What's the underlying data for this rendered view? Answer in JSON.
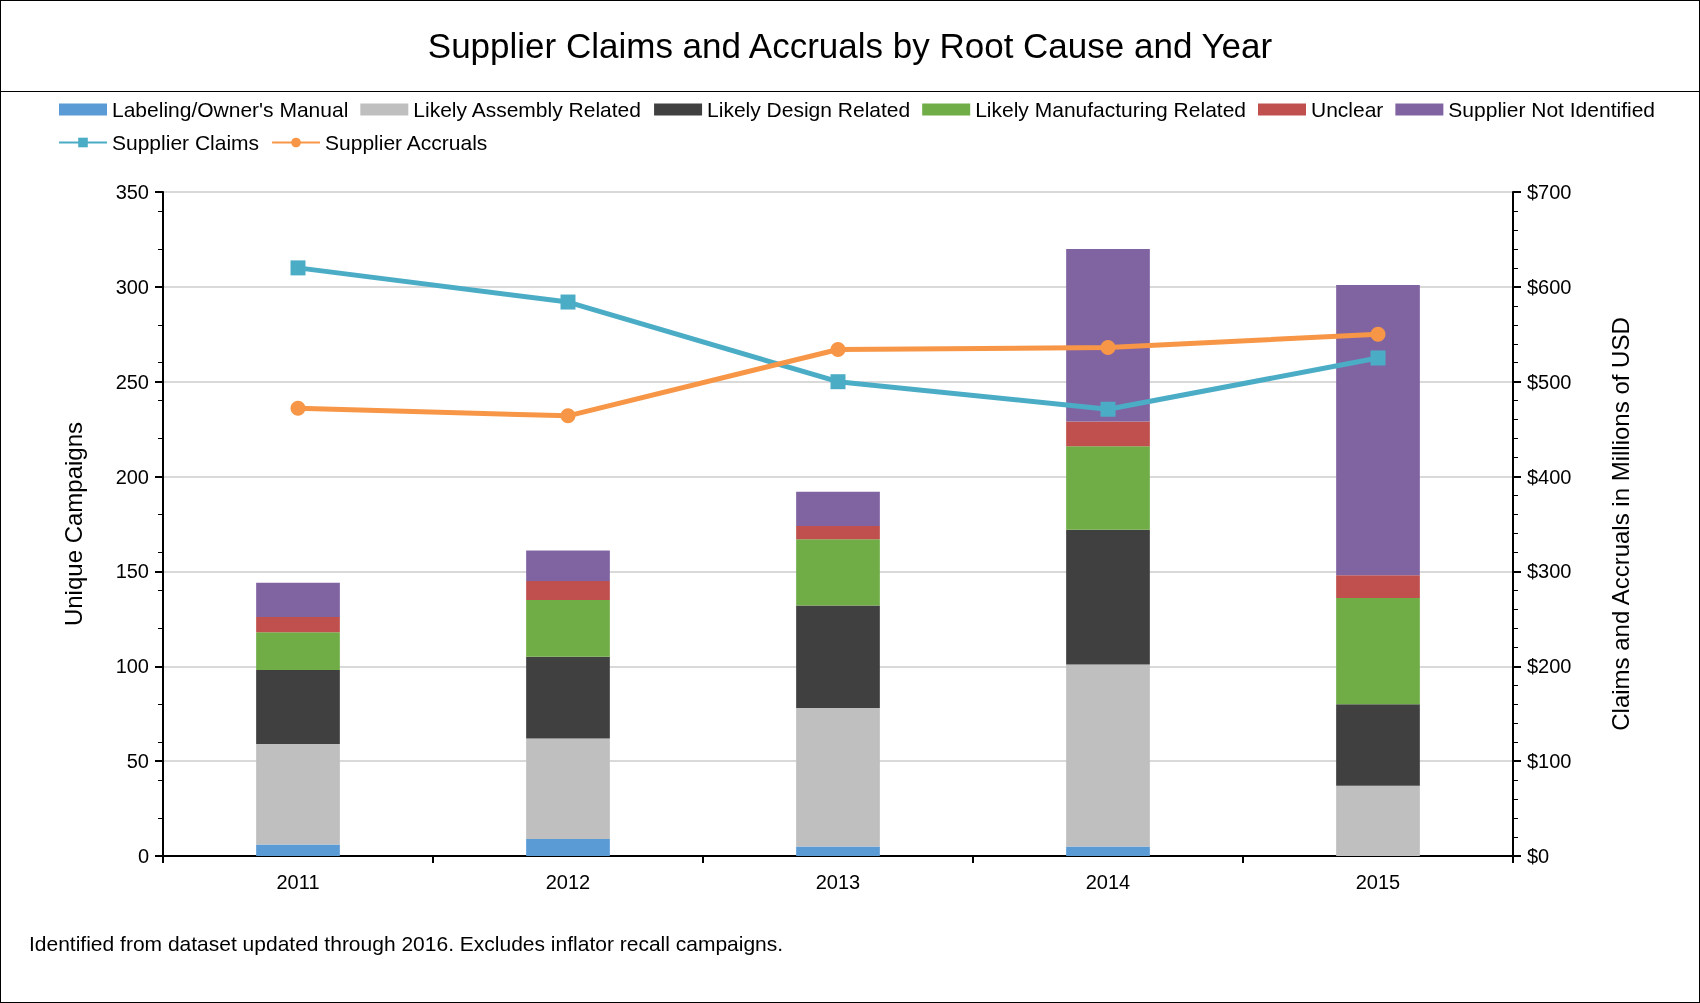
{
  "chart_data": {
    "type": "bar",
    "title": "Supplier Claims and Accruals by Root Cause and Year",
    "categories": [
      "2011",
      "2012",
      "2013",
      "2014",
      "2015"
    ],
    "stacked": true,
    "series": [
      {
        "name": "Labeling/Owner's Manual",
        "color": "#5b9bd5",
        "values": [
          6,
          9,
          5,
          5,
          0
        ]
      },
      {
        "name": "Likely Assembly Related",
        "color": "#bfbfbf",
        "values": [
          53,
          53,
          73,
          96,
          37
        ]
      },
      {
        "name": "Likely Design Related",
        "color": "#404040",
        "values": [
          39,
          43,
          54,
          71,
          43
        ]
      },
      {
        "name": "Likely Manufacturing Related",
        "color": "#70ad47",
        "values": [
          20,
          30,
          35,
          44,
          56
        ]
      },
      {
        "name": "Unclear",
        "color": "#c0504d",
        "values": [
          8,
          10,
          7,
          13,
          12
        ]
      },
      {
        "name": "Supplier Not Identified",
        "color": "#8064a2",
        "values": [
          18,
          16,
          18,
          91,
          153
        ]
      },
      {
        "name": "Supplier Claims",
        "type": "line",
        "axis": "y2",
        "marker": "square",
        "color": "#4bacc6",
        "values": [
          620,
          584,
          500,
          471,
          525
        ]
      },
      {
        "name": "Supplier Accruals",
        "type": "line",
        "axis": "y2",
        "marker": "circle",
        "color": "#f79646",
        "values": [
          472,
          464,
          534,
          536,
          550
        ]
      }
    ],
    "ylabel": "Unique Campaigns",
    "y2label": "Claims and Accruals in Millions of USD",
    "ylim": [
      0,
      350
    ],
    "yticks": [
      0,
      50,
      100,
      150,
      200,
      250,
      300,
      350
    ],
    "y2lim": [
      0,
      700
    ],
    "y2ticks": [
      {
        "value": 0,
        "label": "$0"
      },
      {
        "value": 100,
        "label": "$100"
      },
      {
        "value": 200,
        "label": "$200"
      },
      {
        "value": 300,
        "label": "$300"
      },
      {
        "value": 400,
        "label": "$400"
      },
      {
        "value": 500,
        "label": "$500"
      },
      {
        "value": 600,
        "label": "$600"
      },
      {
        "value": 700,
        "label": "$700"
      }
    ],
    "grid": "y",
    "legend": "top",
    "line_style": "solid",
    "annotations": [
      "Identified from dataset updated through 2016. Excludes inflator recall campaigns."
    ]
  }
}
